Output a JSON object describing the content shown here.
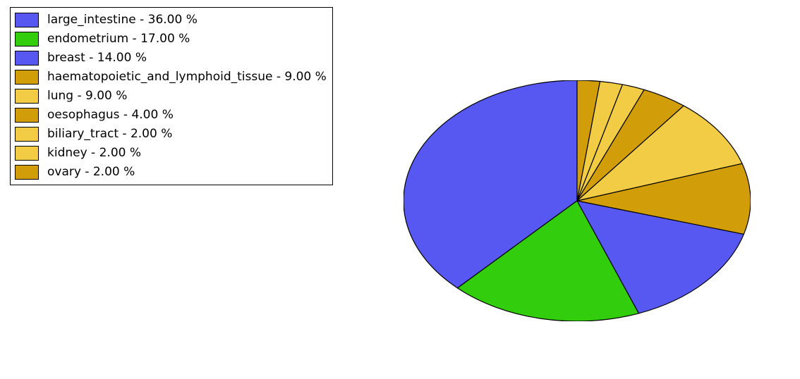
{
  "chart": {
    "type": "pie",
    "background_color": "#ffffff",
    "stroke_color": "#000000",
    "stroke_width": 1.2,
    "ellipse_rx": 246,
    "ellipse_ry": 171,
    "start_angle_deg": 90,
    "direction": "ccw",
    "slices": [
      {
        "label": "large_intestine",
        "pct": 36.0,
        "color": "#5757f2"
      },
      {
        "label": "endometrium",
        "pct": 17.0,
        "color": "#32cd0c"
      },
      {
        "label": "breast",
        "pct": 14.0,
        "color": "#5757f2"
      },
      {
        "label": "haematopoietic_and_lymphoid_tissue",
        "pct": 9.0,
        "color": "#d19e09"
      },
      {
        "label": "lung",
        "pct": 9.0,
        "color": "#f2cc44"
      },
      {
        "label": "oesophagus",
        "pct": 4.0,
        "color": "#d19e09"
      },
      {
        "label": "biliary_tract",
        "pct": 2.0,
        "color": "#f2cc44"
      },
      {
        "label": "kidney",
        "pct": 2.0,
        "color": "#f2cc44"
      },
      {
        "label": "ovary",
        "pct": 2.0,
        "color": "#d19e09"
      }
    ],
    "legend": {
      "border_color": "#000000",
      "swatch_border_color": "#000000",
      "font_size": 17,
      "font_color": "#000000",
      "label_format": "{label} - {pct:.2f} %"
    }
  }
}
